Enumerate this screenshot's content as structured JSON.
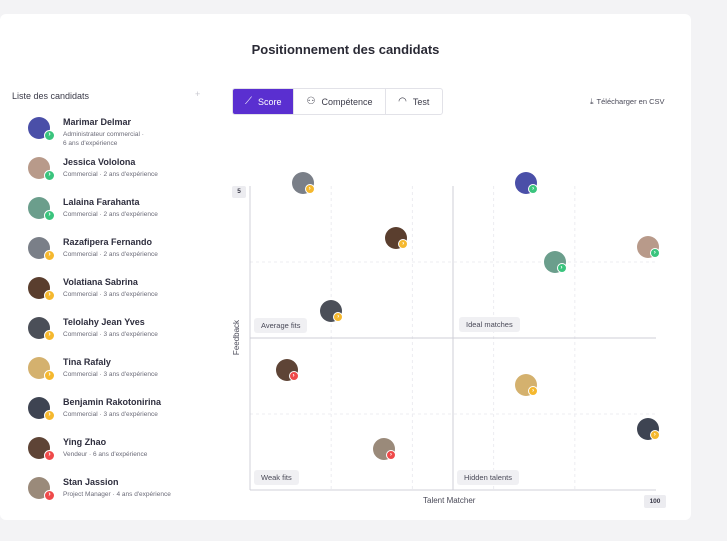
{
  "title": "Positionnement des candidats",
  "sidebar": {
    "header": "Liste des candidats",
    "add_icon": "+",
    "candidates": [
      {
        "name": "Marimar Delmar",
        "role": "Administrateur commercial",
        "experience": "6 ans d'expérience",
        "status": "green",
        "avatar_color": "#4a4fa8"
      },
      {
        "name": "Jessica Vololona",
        "role": "Commercial",
        "experience": "2 ans d'expérience",
        "status": "green",
        "avatar_color": "#b89a8a"
      },
      {
        "name": "Lalaina Farahanta",
        "role": "Commercial",
        "experience": "2 ans d'expérience",
        "status": "green",
        "avatar_color": "#6b9e8c"
      },
      {
        "name": "Razafipera Fernando",
        "role": "Commercial",
        "experience": "2 ans d'expérience",
        "status": "yellow",
        "avatar_color": "#7a7f88"
      },
      {
        "name": "Volatiana Sabrina",
        "role": "Commercial",
        "experience": "3 ans d'expérience",
        "status": "yellow",
        "avatar_color": "#5a3e2e"
      },
      {
        "name": "Telolahy Jean Yves",
        "role": "Commercial",
        "experience": "3 ans d'expérience",
        "status": "yellow",
        "avatar_color": "#4b4f58"
      },
      {
        "name": "Tina Rafaly",
        "role": "Commercial",
        "experience": "3 ans d'expérience",
        "status": "yellow",
        "avatar_color": "#d4b16e"
      },
      {
        "name": "Benjamin Rakotonirina",
        "role": "Commercial",
        "experience": "3 ans d'expérience",
        "status": "yellow",
        "avatar_color": "#3e4452"
      },
      {
        "name": "Ying Zhao",
        "role": "Vendeur",
        "experience": "6 ans d'expérience",
        "status": "red",
        "avatar_color": "#5e4436"
      },
      {
        "name": "Stan Jassion",
        "role": "Project Manager",
        "experience": "4 ans d'expérience",
        "status": "red",
        "avatar_color": "#9a8a7a"
      }
    ]
  },
  "tabs": [
    {
      "label": "Score",
      "icon": "chart-line-icon",
      "glyph": "⟋",
      "active": true
    },
    {
      "label": "Compétence",
      "icon": "user-skill-icon",
      "glyph": "⚇",
      "active": false
    },
    {
      "label": "Test",
      "icon": "gauge-icon",
      "glyph": "◠",
      "active": false
    }
  ],
  "download_csv": {
    "label": "Télécharger en CSV",
    "icon": "download-icon",
    "glyph": "⤓"
  },
  "colors": {
    "accent": "#5a2fd0",
    "green": "#3ac47d",
    "yellow": "#f5b82e",
    "red": "#ef4a4a"
  },
  "chart_data": {
    "type": "scatter",
    "xlabel": "Talent Matcher",
    "ylabel": "Feedback",
    "x_max_label": "100",
    "y_max_label": "5",
    "xlim": [
      0,
      100
    ],
    "ylim": [
      0,
      5
    ],
    "quadrants": [
      "Average fits",
      "Ideal matches",
      "Weak fits",
      "Hidden talents"
    ],
    "points": [
      {
        "x": 13,
        "y": 5.05,
        "status": "yellow",
        "color": "#7a7f88"
      },
      {
        "x": 68,
        "y": 5.05,
        "status": "green",
        "color": "#4a4fa8"
      },
      {
        "x": 36,
        "y": 4.15,
        "status": "yellow",
        "color": "#5a3e2e"
      },
      {
        "x": 98,
        "y": 4.0,
        "status": "green",
        "color": "#b89a8a"
      },
      {
        "x": 75,
        "y": 3.75,
        "status": "green",
        "color": "#6b9e8c"
      },
      {
        "x": 20,
        "y": 2.95,
        "status": "yellow",
        "color": "#4b4f58"
      },
      {
        "x": 9,
        "y": 1.98,
        "status": "red",
        "color": "#5e4436"
      },
      {
        "x": 68,
        "y": 1.73,
        "status": "yellow",
        "color": "#d4b16e"
      },
      {
        "x": 98,
        "y": 1.0,
        "status": "yellow",
        "color": "#3e4452"
      },
      {
        "x": 33,
        "y": 0.68,
        "status": "red",
        "color": "#9a8a7a"
      }
    ]
  }
}
